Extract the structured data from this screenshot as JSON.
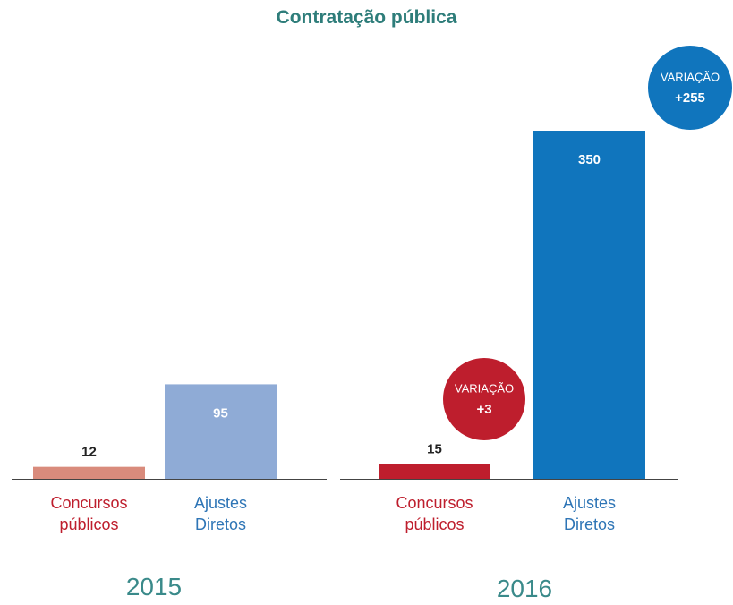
{
  "chart_data": {
    "type": "bar",
    "title": "Contratação pública",
    "groups": [
      {
        "name": "2015",
        "categories": [
          "Concursos públicos",
          "Ajustes Diretos"
        ],
        "values": [
          12,
          95
        ],
        "colors": [
          "#d98b7c",
          "#8fabd6"
        ]
      },
      {
        "name": "2016",
        "categories": [
          "Concursos públicos",
          "Ajustes Diretos"
        ],
        "values": [
          15,
          350
        ],
        "colors": [
          "#be1e2d",
          "#1075bd"
        ],
        "annotations": [
          {
            "label": "VARIAÇÃO",
            "value": "+3",
            "color": "#be1e2d"
          },
          {
            "label": "VARIAÇÃO",
            "value": "+255",
            "color": "#1075bd"
          }
        ]
      }
    ],
    "label_colors": [
      "#be1e2d",
      "#2e75b6"
    ]
  }
}
